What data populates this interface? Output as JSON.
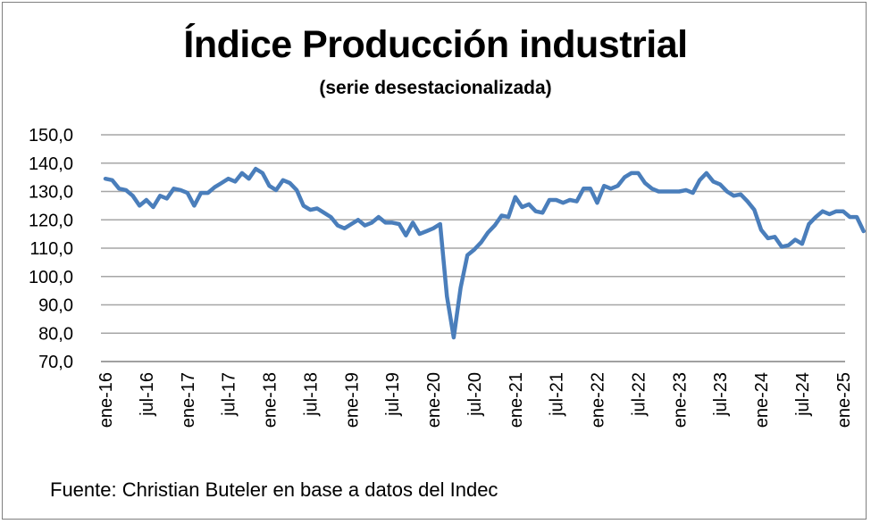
{
  "chart_data": {
    "type": "line",
    "title": "Índice Producción industrial",
    "subtitle": "(serie desestacionalizada)",
    "ylim": [
      70,
      150
    ],
    "yticks": [
      "150,0",
      "140,0",
      "130,0",
      "120,0",
      "110,0",
      "100,0",
      "90,0",
      "80,0",
      "70,0"
    ],
    "xticks": [
      "ene-16",
      "jul-16",
      "ene-17",
      "jul-17",
      "ene-18",
      "jul-18",
      "ene-19",
      "jul-19",
      "ene-20",
      "jul-20",
      "ene-21",
      "jul-21",
      "ene-22",
      "jul-22",
      "ene-23",
      "jul-23",
      "ene-24",
      "jul-24",
      "ene-25"
    ],
    "grid": true,
    "line_color": "#4a7ebb",
    "series": [
      {
        "x_start": "ene-16",
        "frequency": "monthly",
        "values": [
          134.5,
          134,
          131,
          130.5,
          128.5,
          125,
          127,
          124.5,
          128.5,
          127.5,
          131,
          130.5,
          129.5,
          125,
          129.5,
          129.5,
          131.5,
          133,
          134.5,
          133.5,
          136.5,
          134.5,
          138,
          136.5,
          132,
          130.5,
          134,
          133,
          130.5,
          125,
          123.5,
          124,
          122.5,
          121,
          118,
          117,
          118.5,
          120,
          118,
          119,
          121,
          119,
          119,
          118.5,
          114.5,
          119,
          115,
          116,
          117,
          118.5,
          93,
          78.5,
          96,
          107.5,
          109.5,
          112,
          115.5,
          118,
          121.5,
          121,
          128,
          124.5,
          125.5,
          123,
          122.5,
          127,
          127,
          126,
          127,
          126.5,
          131,
          131,
          126,
          132,
          131,
          132,
          135,
          136.5,
          136.5,
          133,
          131,
          130,
          130,
          130,
          130,
          130.5,
          129.5,
          134,
          136.5,
          133.5,
          132.5,
          130,
          128.5,
          129,
          126.5,
          123.5,
          116.5,
          113.5,
          114,
          110.5,
          111,
          113,
          111.5,
          118.5,
          121,
          123,
          122,
          123,
          123,
          121,
          121,
          116
        ]
      }
    ]
  },
  "footer": "Fuente: Christian Buteler en base a datos del Indec"
}
